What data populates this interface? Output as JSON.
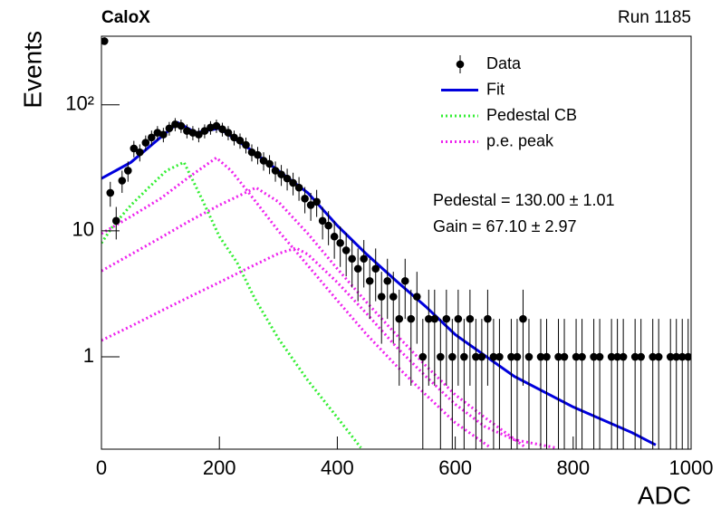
{
  "chart_data": {
    "type": "line",
    "title": "CaloX",
    "subtitle": "Run 1185",
    "x_label": "ADC",
    "y_label": "Events",
    "ylog": true,
    "xlim": [
      0,
      1000
    ],
    "ylim": [
      0.185,
      350
    ],
    "xticks": [
      0,
      200,
      400,
      600,
      800,
      1000
    ],
    "yticks": [
      1,
      10,
      {
        "value": 100,
        "label": "10²"
      }
    ],
    "annotations": [
      "Pedestal = 130.00 ± 1.01",
      "Gain = 67.10 ± 2.97"
    ],
    "data": {
      "name": "Data",
      "color": "#000000",
      "x": [
        5,
        15,
        25,
        35,
        45,
        55,
        65,
        75,
        85,
        95,
        105,
        115,
        125,
        135,
        145,
        155,
        165,
        175,
        185,
        195,
        205,
        215,
        225,
        235,
        245,
        255,
        265,
        275,
        285,
        295,
        305,
        315,
        325,
        335,
        345,
        355,
        365,
        375,
        385,
        395,
        405,
        415,
        425,
        435,
        445,
        455,
        465,
        475,
        485,
        495,
        505,
        515,
        525,
        535,
        545,
        555,
        565,
        575,
        585,
        595,
        605,
        615,
        625,
        635,
        645,
        655,
        665,
        675,
        685,
        695,
        705,
        715,
        725,
        735,
        745,
        755,
        765,
        775,
        785,
        795,
        805,
        815,
        825,
        835,
        845,
        855,
        865,
        875,
        885,
        895,
        905,
        915,
        925,
        935,
        945,
        955,
        965,
        975,
        985,
        995
      ],
      "values": [
        320,
        20,
        12,
        25,
        30,
        45,
        42,
        50,
        55,
        60,
        58,
        65,
        70,
        68,
        62,
        60,
        58,
        62,
        66,
        68,
        64,
        60,
        55,
        52,
        48,
        42,
        40,
        36,
        34,
        30,
        28,
        26,
        24,
        22,
        18,
        16,
        17,
        12,
        11,
        9,
        8,
        7,
        6,
        5,
        6,
        4,
        5,
        3,
        4,
        3,
        2,
        4,
        2,
        3,
        1,
        2,
        2,
        1,
        2,
        1,
        2,
        1,
        2,
        1,
        1,
        2,
        1,
        1,
        null,
        1,
        1,
        2,
        1,
        null,
        1,
        1,
        null,
        1,
        1,
        null,
        1,
        1,
        null,
        1,
        1,
        null,
        1,
        1,
        1,
        null,
        1,
        1,
        null,
        1,
        1,
        null,
        1,
        1,
        1,
        1
      ],
      "errors": [
        17.89,
        4.47,
        3.46,
        5,
        5.48,
        6.71,
        6.48,
        7.07,
        7.42,
        7.75,
        7.62,
        8.06,
        8.37,
        8.25,
        7.87,
        7.75,
        7.62,
        7.87,
        8.12,
        8.25,
        8,
        7.75,
        7.42,
        7.21,
        6.93,
        6.48,
        6.32,
        6,
        5.83,
        5.48,
        5.29,
        5.1,
        4.9,
        4.69,
        4.24,
        4,
        4.12,
        3.46,
        3.32,
        3,
        2.83,
        2.65,
        2.45,
        2.24,
        2.45,
        2,
        2.24,
        1.73,
        2,
        1.73,
        1.41,
        2,
        1.41,
        1.73,
        1,
        1.41,
        1.41,
        1,
        1.41,
        1,
        1.41,
        1,
        1.41,
        1,
        1,
        1.41,
        1,
        1,
        null,
        1,
        1,
        1.41,
        1,
        null,
        1,
        1,
        null,
        1,
        1,
        null,
        1,
        1,
        null,
        1,
        1,
        null,
        1,
        1,
        1,
        null,
        1,
        1,
        null,
        1,
        1,
        null,
        1,
        1,
        1,
        1
      ]
    },
    "curves": [
      {
        "name": "Fit",
        "color": "#0000dd",
        "style": "solid",
        "x": [
          0,
          50,
          100,
          130,
          160,
          200,
          250,
          300,
          350,
          400,
          450,
          500,
          550,
          600,
          700,
          800,
          900,
          940
        ],
        "values": [
          26,
          35,
          55,
          72,
          60,
          65,
          45,
          30,
          20,
          11,
          6.5,
          4,
          2.5,
          1.5,
          0.7,
          0.4,
          0.25,
          0.2
        ]
      },
      {
        "name": "Pedestal CB",
        "color": "#33ee33",
        "style": "dotted",
        "x": [
          0,
          20,
          50,
          80,
          110,
          140,
          170,
          200,
          230,
          260,
          300,
          350,
          400,
          440
        ],
        "values": [
          8,
          11,
          16,
          22,
          30,
          35,
          18,
          9,
          5.6,
          2.9,
          1.4,
          0.65,
          0.33,
          0.19
        ]
      },
      {
        "name": "p.e. peak",
        "color": "#ee22ee",
        "style": "dotted",
        "x": [
          0,
          50,
          100,
          150,
          195,
          220,
          250,
          300,
          350,
          400,
          450,
          500,
          550,
          600,
          660
        ],
        "values": [
          9.5,
          13,
          18,
          27,
          38,
          30,
          20,
          10,
          5.3,
          2.8,
          1.5,
          0.85,
          0.5,
          0.3,
          0.19
        ]
      },
      {
        "color": "#ee22ee",
        "style": "dotted",
        "x": [
          0,
          50,
          100,
          150,
          200,
          262,
          300,
          350,
          400,
          450,
          500,
          550,
          600,
          650,
          720
        ],
        "values": [
          4.8,
          6.5,
          8.8,
          12,
          16,
          22,
          17,
          9.5,
          5,
          2.7,
          1.5,
          0.85,
          0.5,
          0.33,
          0.19
        ]
      },
      {
        "color": "#ee22ee",
        "style": "dotted",
        "x": [
          0,
          50,
          100,
          150,
          200,
          250,
          300,
          330,
          350,
          400,
          450,
          500,
          550,
          600,
          650,
          700,
          770
        ],
        "values": [
          1.35,
          1.75,
          2.3,
          3,
          3.9,
          5.1,
          6.6,
          7.3,
          6.5,
          3.9,
          2.2,
          1.2,
          0.7,
          0.42,
          0.28,
          0.22,
          0.19
        ]
      }
    ]
  }
}
